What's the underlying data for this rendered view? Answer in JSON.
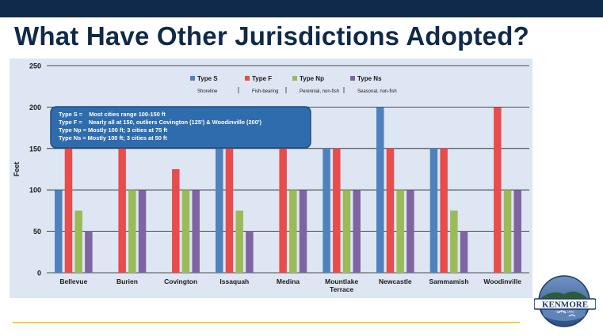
{
  "page": {
    "title": "What Have Other Jurisdictions Adopted?",
    "logo_text": "KENMORE",
    "logo_subtext": "ON THE LAKE"
  },
  "colors": {
    "header_bar": "#0f2a4a",
    "title": "#0f2a4a",
    "accent_line": "#f2cc3a",
    "chart_bg": "#dde6f2",
    "callout_fill": "#2f6cae"
  },
  "chart_data": {
    "type": "bar",
    "categories": [
      "Bellevue",
      "Burien",
      "Covington",
      "Issaquah",
      "Medina",
      "Mountlake Terrace",
      "Newcastle",
      "Sammamish",
      "Woodinville"
    ],
    "series": [
      {
        "name": "Type S",
        "sublabel": "Shoreline",
        "color": "#4f81bd",
        "values": [
          100,
          0,
          0,
          150,
          0,
          150,
          200,
          150,
          0
        ]
      },
      {
        "name": "Type F",
        "sublabel": "Fish-bearing",
        "color": "#e84c4c",
        "values": [
          150,
          150,
          125,
          150,
          150,
          150,
          150,
          150,
          200
        ]
      },
      {
        "name": "Type Np",
        "sublabel": "Perennial, non-fish",
        "color": "#9bbb59",
        "values": [
          75,
          100,
          100,
          75,
          100,
          100,
          100,
          75,
          100
        ]
      },
      {
        "name": "Type Ns",
        "sublabel": "Seasonal, non-fish",
        "color": "#8064a2",
        "values": [
          50,
          100,
          100,
          50,
          100,
          100,
          100,
          50,
          100
        ]
      }
    ],
    "ylabel": "Feet",
    "ylim": [
      0,
      250
    ],
    "yticks": [
      0,
      50,
      100,
      150,
      200,
      250
    ],
    "grid": true,
    "legend_position": "top-center",
    "callout_lines": [
      "Type S =    Most cities range 100-150 ft",
      "Type F =    Nearly all at 150, outliers Covington (125') & Woodinville (200')",
      "Type Np = Mostly 100 ft; 3 cities at 75 ft",
      "Type Ns = Mostly 100 ft; 3 cities at 50 ft"
    ]
  }
}
